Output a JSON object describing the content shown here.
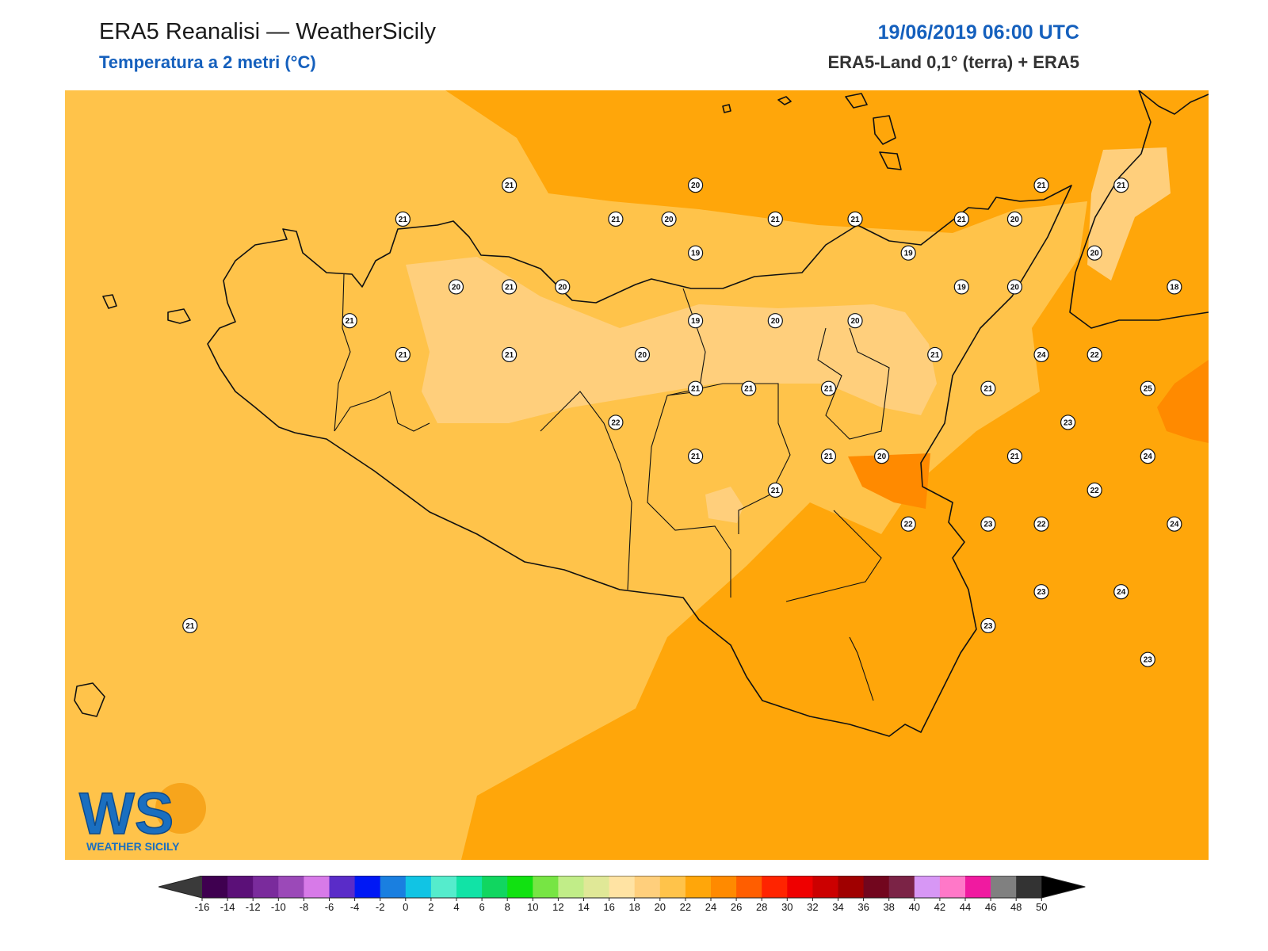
{
  "header": {
    "title": "ERA5 Reanalisi — WeatherSicily",
    "subtitle": "Temperatura a 2 metri (°C)",
    "datetime": "19/06/2019 06:00 UTC",
    "source": "ERA5-Land 0,1° (terra) + ERA5"
  },
  "stations": [
    {
      "v": "21",
      "lon": 13.22,
      "lat": 38.25
    },
    {
      "v": "20",
      "lon": 13.92,
      "lat": 38.25
    },
    {
      "v": "21",
      "lon": 15.22,
      "lat": 38.25
    },
    {
      "v": "21",
      "lon": 15.52,
      "lat": 38.25
    },
    {
      "v": "21",
      "lon": 16.12,
      "lat": 38.25
    },
    {
      "v": "22",
      "lon": 16.32,
      "lat": 38.35
    },
    {
      "v": "23",
      "lon": 16.72,
      "lat": 38.35
    },
    {
      "v": "22",
      "lon": 16.72,
      "lat": 38.25
    },
    {
      "v": "21",
      "lon": 12.82,
      "lat": 38.15
    },
    {
      "v": "21",
      "lon": 13.62,
      "lat": 38.15
    },
    {
      "v": "20",
      "lon": 13.82,
      "lat": 38.15
    },
    {
      "v": "21",
      "lon": 14.22,
      "lat": 38.15
    },
    {
      "v": "21",
      "lon": 14.52,
      "lat": 38.15
    },
    {
      "v": "21",
      "lon": 14.92,
      "lat": 38.15
    },
    {
      "v": "20",
      "lon": 15.12,
      "lat": 38.15
    },
    {
      "v": "19",
      "lon": 13.92,
      "lat": 38.05
    },
    {
      "v": "19",
      "lon": 14.72,
      "lat": 38.05
    },
    {
      "v": "20",
      "lon": 15.42,
      "lat": 38.05
    },
    {
      "v": "21",
      "lon": 16.02,
      "lat": 38.05
    },
    {
      "v": "20",
      "lon": 13.02,
      "lat": 37.95
    },
    {
      "v": "21",
      "lon": 13.22,
      "lat": 37.95
    },
    {
      "v": "20",
      "lon": 13.42,
      "lat": 37.95
    },
    {
      "v": "19",
      "lon": 14.92,
      "lat": 37.95
    },
    {
      "v": "20",
      "lon": 15.12,
      "lat": 37.95
    },
    {
      "v": "18",
      "lon": 15.72,
      "lat": 37.95
    },
    {
      "v": "21",
      "lon": 12.62,
      "lat": 37.85
    },
    {
      "v": "19",
      "lon": 13.92,
      "lat": 37.85
    },
    {
      "v": "20",
      "lon": 14.22,
      "lat": 37.85
    },
    {
      "v": "20",
      "lon": 14.52,
      "lat": 37.85
    },
    {
      "v": "22",
      "lon": 16.02,
      "lat": 37.85
    },
    {
      "v": "21",
      "lon": 12.82,
      "lat": 37.75
    },
    {
      "v": "21",
      "lon": 13.22,
      "lat": 37.75
    },
    {
      "v": "20",
      "lon": 13.72,
      "lat": 37.75
    },
    {
      "v": "21",
      "lon": 14.82,
      "lat": 37.75
    },
    {
      "v": "24",
      "lon": 15.22,
      "lat": 37.75
    },
    {
      "v": "22",
      "lon": 15.42,
      "lat": 37.75
    },
    {
      "v": "21",
      "lon": 13.92,
      "lat": 37.65
    },
    {
      "v": "21",
      "lon": 14.12,
      "lat": 37.65
    },
    {
      "v": "21",
      "lon": 14.42,
      "lat": 37.65
    },
    {
      "v": "21",
      "lon": 15.02,
      "lat": 37.65
    },
    {
      "v": "25",
      "lon": 15.62,
      "lat": 37.65
    },
    {
      "v": "22",
      "lon": 13.62,
      "lat": 37.55
    },
    {
      "v": "23",
      "lon": 15.32,
      "lat": 37.55
    },
    {
      "v": "21",
      "lon": 13.92,
      "lat": 37.45
    },
    {
      "v": "21",
      "lon": 14.42,
      "lat": 37.45
    },
    {
      "v": "20",
      "lon": 14.62,
      "lat": 37.45
    },
    {
      "v": "21",
      "lon": 15.12,
      "lat": 37.45
    },
    {
      "v": "24",
      "lon": 15.62,
      "lat": 37.45
    },
    {
      "v": "21",
      "lon": 14.22,
      "lat": 37.35
    },
    {
      "v": "22",
      "lon": 15.42,
      "lat": 37.35
    },
    {
      "v": "22",
      "lon": 14.72,
      "lat": 37.25
    },
    {
      "v": "23",
      "lon": 15.02,
      "lat": 37.25
    },
    {
      "v": "22",
      "lon": 15.22,
      "lat": 37.25
    },
    {
      "v": "24",
      "lon": 15.72,
      "lat": 37.25
    },
    {
      "v": "23",
      "lon": 15.22,
      "lat": 37.05
    },
    {
      "v": "24",
      "lon": 15.52,
      "lat": 37.05
    },
    {
      "v": "23",
      "lon": 15.02,
      "lat": 36.95
    },
    {
      "v": "23",
      "lon": 15.62,
      "lat": 36.85
    },
    {
      "v": "21",
      "lon": 12.02,
      "lat": 36.95
    }
  ],
  "colorbar": {
    "ticks": [
      "-16",
      "-14",
      "-12",
      "-10",
      "-8",
      "-6",
      "-4",
      "-2",
      "0",
      "2",
      "4",
      "6",
      "8",
      "10",
      "12",
      "14",
      "16",
      "18",
      "20",
      "22",
      "24",
      "26",
      "28",
      "30",
      "32",
      "34",
      "36",
      "38",
      "40",
      "42",
      "44",
      "46",
      "48",
      "50"
    ],
    "colors": [
      "#3f0050",
      "#5b1078",
      "#7a2b9c",
      "#9b49b8",
      "#d77ae8",
      "#5a2cc8",
      "#0018f5",
      "#1a7fe0",
      "#11c4e4",
      "#55eccc",
      "#11e3a6",
      "#11d660",
      "#11e111",
      "#77e544",
      "#c1ed88",
      "#e0e897",
      "#ffe3a3",
      "#ffcf7c",
      "#ffc34a",
      "#ffa60a",
      "#ff8a00",
      "#ff5e00",
      "#ff2400",
      "#ef0000",
      "#cc0000",
      "#a00000",
      "#72061e",
      "#7b2346",
      "#d797f5",
      "#ff78c8",
      "#f01aa0",
      "#808080",
      "#333333"
    ],
    "under_color": "#3a3a3a",
    "over_color": "#000000"
  },
  "logo": {
    "mark": "WS",
    "text": "WEATHER SICILY"
  },
  "palette": {
    "t18": "#ffcf7c",
    "t20": "#ffc34a",
    "t22": "#ffa60a",
    "t24": "#ff8a00",
    "coast": "#111111"
  }
}
